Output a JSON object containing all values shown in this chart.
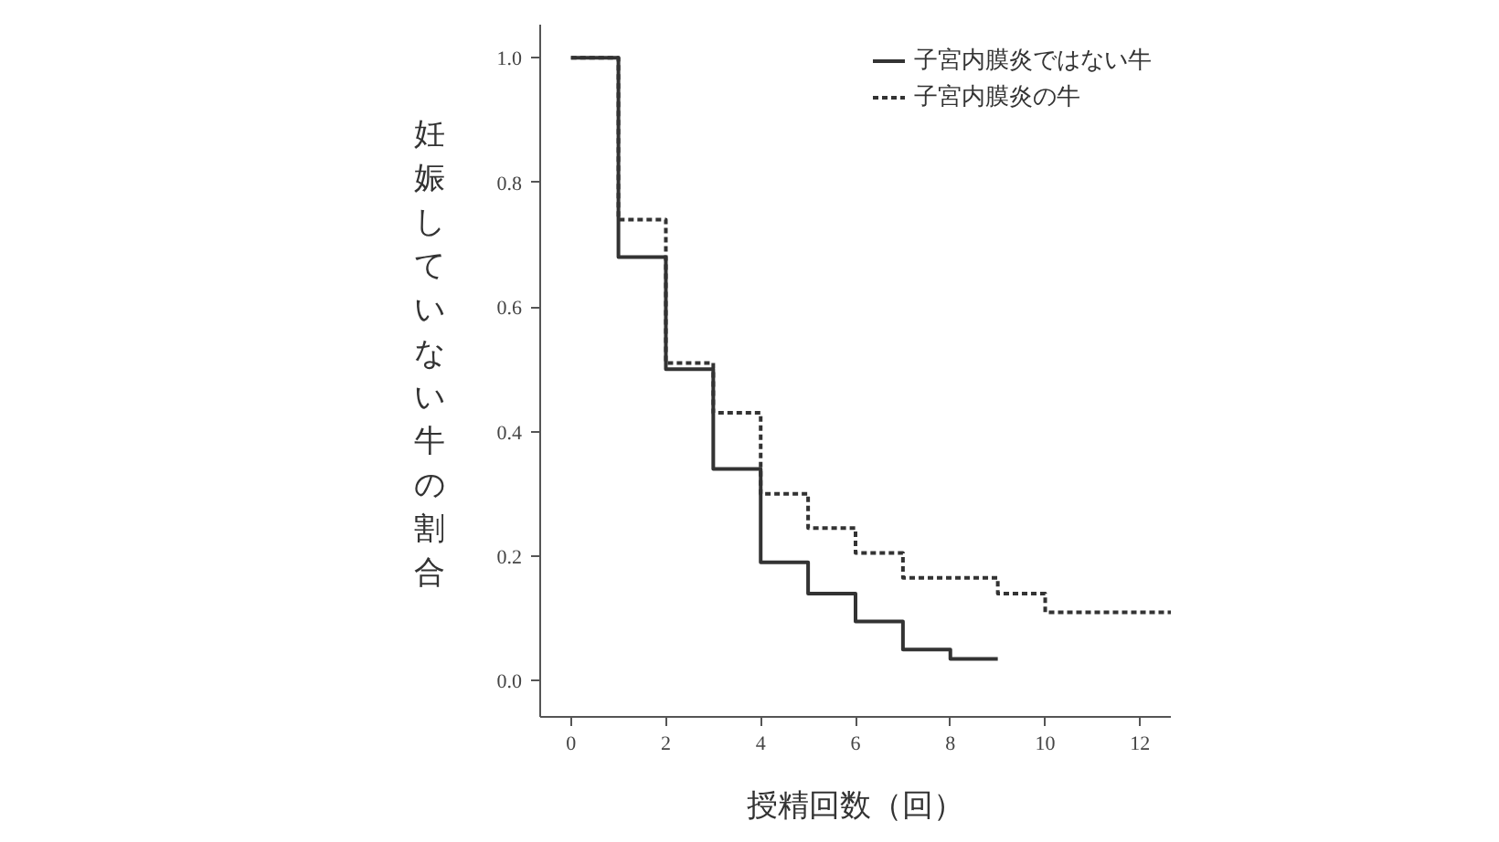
{
  "chart_data": {
    "type": "step",
    "xlabel": "授精回数（回）",
    "ylabel": "妊娠していない牛の割合",
    "xlim": [
      -0.65,
      12.65
    ],
    "ylim": [
      -0.058,
      1.053
    ],
    "xticks": [
      0,
      2,
      4,
      6,
      8,
      10,
      12
    ],
    "yticks": [
      {
        "value": 0,
        "label": "0.0"
      },
      {
        "value": 0.2,
        "label": "0.2"
      },
      {
        "value": 0.4,
        "label": "0.4"
      },
      {
        "value": 0.6,
        "label": "0.6"
      },
      {
        "value": 0.8,
        "label": "0.8"
      },
      {
        "value": 1,
        "label": "1.0"
      }
    ],
    "grid": false,
    "legend": "top right",
    "marker": "none",
    "series": [
      {
        "name": "子宮内膜炎ではない牛",
        "color": "#333333",
        "line_style": "solid",
        "x": [
          0,
          1,
          2,
          3,
          4,
          5,
          6,
          7,
          8,
          9
        ],
        "values": [
          1.0,
          0.68,
          0.5,
          0.34,
          0.19,
          0.14,
          0.095,
          0.05,
          0.035,
          0.035
        ]
      },
      {
        "name": "子宮内膜炎の牛",
        "color": "#333333",
        "line_style": "dotted",
        "x": [
          0,
          1,
          2,
          3,
          4,
          5,
          6,
          7,
          9,
          10,
          12.65
        ],
        "values": [
          1.0,
          0.74,
          0.51,
          0.43,
          0.3,
          0.245,
          0.205,
          0.165,
          0.14,
          0.11,
          0.11
        ]
      }
    ]
  }
}
